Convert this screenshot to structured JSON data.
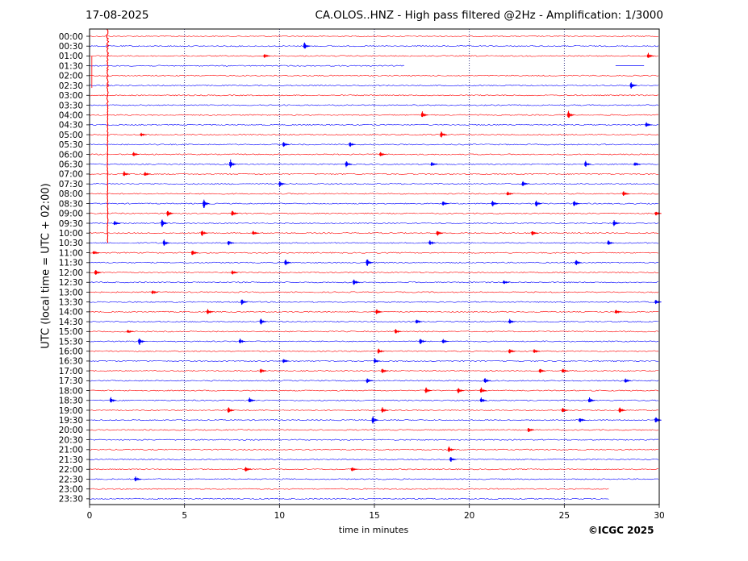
{
  "header": {
    "date": "17-08-2025",
    "title": "CA.OLOS..HNZ - High pass filtered @2Hz - Amplification: 1/3000"
  },
  "footer": {
    "copyright": "©ICGC 2025"
  },
  "chart_data": {
    "type": "line",
    "title": "CA.OLOS..HNZ - High pass filtered @2Hz - Amplification: 1/3000",
    "xlabel": "time in minutes",
    "ylabel": "UTC (local time = UTC + 02:00)",
    "xlim": [
      0,
      30
    ],
    "xticks": [
      0,
      5,
      10,
      15,
      20,
      25,
      30
    ],
    "grid": "vertical dotted lines at 5-minute intervals",
    "colors": {
      "red": "#ff0000",
      "blue": "#0000ff"
    },
    "rows": [
      "00:00",
      "00:30",
      "01:00",
      "01:30",
      "02:00",
      "02:30",
      "03:00",
      "03:30",
      "04:00",
      "04:30",
      "05:00",
      "05:30",
      "06:00",
      "06:30",
      "07:00",
      "07:30",
      "08:00",
      "08:30",
      "09:00",
      "09:30",
      "10:00",
      "10:30",
      "11:00",
      "11:30",
      "12:00",
      "12:30",
      "13:00",
      "13:30",
      "14:00",
      "14:30",
      "15:00",
      "15:30",
      "16:00",
      "16:30",
      "17:00",
      "17:30",
      "18:00",
      "18:30",
      "19:00",
      "19:30",
      "20:00",
      "20:30",
      "21:00",
      "21:30",
      "22:00",
      "22:30",
      "23:00",
      "23:30"
    ],
    "row_colors": [
      "red",
      "blue",
      "red",
      "blue",
      "red",
      "blue",
      "red",
      "blue",
      "red",
      "blue",
      "red",
      "blue",
      "red",
      "blue",
      "red",
      "blue",
      "red",
      "blue",
      "red",
      "blue",
      "red",
      "blue",
      "red",
      "blue",
      "red",
      "blue",
      "red",
      "blue",
      "red",
      "blue",
      "red",
      "blue",
      "red",
      "blue",
      "red",
      "blue",
      "red",
      "blue",
      "red",
      "blue",
      "red",
      "blue",
      "red",
      "blue",
      "red",
      "blue",
      "red",
      "blue"
    ],
    "traces_end_minute": [
      30,
      30,
      30,
      16.6,
      30,
      30,
      30,
      30,
      30,
      30,
      30,
      30,
      30,
      30,
      30,
      30,
      30,
      30,
      30,
      30,
      30,
      30,
      30,
      30,
      30,
      30,
      30,
      30,
      30,
      30,
      30,
      30,
      30,
      30,
      30,
      30,
      30,
      30,
      30,
      30,
      30,
      30,
      30,
      30,
      30,
      30,
      27.4,
      27.4
    ],
    "gaps": [
      {
        "row": "01:30",
        "from_minute": 16.6,
        "to_minute": 27.7
      }
    ],
    "large_event": {
      "minute": 0.95,
      "start_row": "00:00",
      "end_row": "10:30"
    },
    "events": [
      {
        "row": "00:30",
        "minute": 11.4,
        "amp": 0.55
      },
      {
        "row": "01:00",
        "minute": 29.5,
        "amp": 0.4
      },
      {
        "row": "01:00",
        "minute": 9.3,
        "amp": 0.3
      },
      {
        "row": "02:30",
        "minute": 28.6,
        "amp": 0.5
      },
      {
        "row": "04:00",
        "minute": 17.6,
        "amp": 0.45
      },
      {
        "row": "04:00",
        "minute": 25.3,
        "amp": 0.55
      },
      {
        "row": "04:30",
        "minute": 29.4,
        "amp": 0.35
      },
      {
        "row": "05:00",
        "minute": 18.6,
        "amp": 0.45
      },
      {
        "row": "05:00",
        "minute": 2.8,
        "amp": 0.25
      },
      {
        "row": "05:30",
        "minute": 10.3,
        "amp": 0.45
      },
      {
        "row": "05:30",
        "minute": 13.8,
        "amp": 0.35
      },
      {
        "row": "06:00",
        "minute": 2.4,
        "amp": 0.3
      },
      {
        "row": "06:00",
        "minute": 15.4,
        "amp": 0.3
      },
      {
        "row": "06:30",
        "minute": 7.5,
        "amp": 0.6
      },
      {
        "row": "06:30",
        "minute": 13.6,
        "amp": 0.45
      },
      {
        "row": "06:30",
        "minute": 18.1,
        "amp": 0.3
      },
      {
        "row": "06:30",
        "minute": 26.2,
        "amp": 0.45
      },
      {
        "row": "06:30",
        "minute": 28.8,
        "amp": 0.3
      },
      {
        "row": "07:00",
        "minute": 1.9,
        "amp": 0.35
      },
      {
        "row": "07:00",
        "minute": 3.0,
        "amp": 0.3
      },
      {
        "row": "07:30",
        "minute": 10.1,
        "amp": 0.4
      },
      {
        "row": "07:30",
        "minute": 22.9,
        "amp": 0.35
      },
      {
        "row": "08:00",
        "minute": 22.1,
        "amp": 0.35
      },
      {
        "row": "08:00",
        "minute": 28.2,
        "amp": 0.35
      },
      {
        "row": "08:30",
        "minute": 6.1,
        "amp": 0.65
      },
      {
        "row": "08:30",
        "minute": 21.3,
        "amp": 0.45
      },
      {
        "row": "08:30",
        "minute": 23.6,
        "amp": 0.45
      },
      {
        "row": "08:30",
        "minute": 25.6,
        "amp": 0.4
      },
      {
        "row": "08:30",
        "minute": 18.7,
        "amp": 0.35
      },
      {
        "row": "09:00",
        "minute": 4.2,
        "amp": 0.5
      },
      {
        "row": "09:00",
        "minute": 7.6,
        "amp": 0.4
      },
      {
        "row": "09:00",
        "minute": 29.9,
        "amp": 0.3
      },
      {
        "row": "09:30",
        "minute": 3.9,
        "amp": 0.55
      },
      {
        "row": "09:30",
        "minute": 27.7,
        "amp": 0.45
      },
      {
        "row": "09:30",
        "minute": 1.4,
        "amp": 0.3
      },
      {
        "row": "10:00",
        "minute": 6.0,
        "amp": 0.45
      },
      {
        "row": "10:00",
        "minute": 18.4,
        "amp": 0.4
      },
      {
        "row": "10:00",
        "minute": 23.4,
        "amp": 0.35
      },
      {
        "row": "10:00",
        "minute": 8.7,
        "amp": 0.3
      },
      {
        "row": "10:30",
        "minute": 4.0,
        "amp": 0.45
      },
      {
        "row": "10:30",
        "minute": 7.4,
        "amp": 0.35
      },
      {
        "row": "10:30",
        "minute": 18.0,
        "amp": 0.35
      },
      {
        "row": "10:30",
        "minute": 27.4,
        "amp": 0.35
      },
      {
        "row": "11:00",
        "minute": 5.5,
        "amp": 0.4
      },
      {
        "row": "11:00",
        "minute": 0.3,
        "amp": 0.3
      },
      {
        "row": "11:30",
        "minute": 14.7,
        "amp": 0.55
      },
      {
        "row": "11:30",
        "minute": 10.4,
        "amp": 0.4
      },
      {
        "row": "11:30",
        "minute": 25.7,
        "amp": 0.4
      },
      {
        "row": "12:00",
        "minute": 0.4,
        "amp": 0.4
      },
      {
        "row": "12:00",
        "minute": 7.6,
        "amp": 0.3
      },
      {
        "row": "12:30",
        "minute": 14.0,
        "amp": 0.4
      },
      {
        "row": "12:30",
        "minute": 21.9,
        "amp": 0.3
      },
      {
        "row": "13:00",
        "minute": 3.4,
        "amp": 0.3
      },
      {
        "row": "13:30",
        "minute": 8.1,
        "amp": 0.45
      },
      {
        "row": "13:30",
        "minute": 29.9,
        "amp": 0.3
      },
      {
        "row": "14:00",
        "minute": 6.3,
        "amp": 0.35
      },
      {
        "row": "14:00",
        "minute": 15.2,
        "amp": 0.35
      },
      {
        "row": "14:00",
        "minute": 27.8,
        "amp": 0.35
      },
      {
        "row": "14:30",
        "minute": 9.1,
        "amp": 0.45
      },
      {
        "row": "14:30",
        "minute": 17.3,
        "amp": 0.35
      },
      {
        "row": "14:30",
        "minute": 22.2,
        "amp": 0.35
      },
      {
        "row": "15:00",
        "minute": 16.2,
        "amp": 0.35
      },
      {
        "row": "15:00",
        "minute": 2.1,
        "amp": 0.25
      },
      {
        "row": "15:30",
        "minute": 2.7,
        "amp": 0.55
      },
      {
        "row": "15:30",
        "minute": 17.5,
        "amp": 0.45
      },
      {
        "row": "15:30",
        "minute": 8.0,
        "amp": 0.35
      },
      {
        "row": "15:30",
        "minute": 18.7,
        "amp": 0.35
      },
      {
        "row": "16:00",
        "minute": 15.3,
        "amp": 0.4
      },
      {
        "row": "16:00",
        "minute": 22.2,
        "amp": 0.35
      },
      {
        "row": "16:00",
        "minute": 23.5,
        "amp": 0.3
      },
      {
        "row": "16:30",
        "minute": 10.3,
        "amp": 0.35
      },
      {
        "row": "16:30",
        "minute": 15.1,
        "amp": 0.35
      },
      {
        "row": "17:00",
        "minute": 9.1,
        "amp": 0.35
      },
      {
        "row": "17:00",
        "minute": 15.5,
        "amp": 0.35
      },
      {
        "row": "17:00",
        "minute": 23.8,
        "amp": 0.35
      },
      {
        "row": "17:00",
        "minute": 25.0,
        "amp": 0.35
      },
      {
        "row": "17:30",
        "minute": 14.7,
        "amp": 0.35
      },
      {
        "row": "17:30",
        "minute": 20.9,
        "amp": 0.35
      },
      {
        "row": "17:30",
        "minute": 28.3,
        "amp": 0.35
      },
      {
        "row": "18:00",
        "minute": 17.8,
        "amp": 0.4
      },
      {
        "row": "18:00",
        "minute": 19.5,
        "amp": 0.4
      },
      {
        "row": "18:00",
        "minute": 20.7,
        "amp": 0.4
      },
      {
        "row": "18:30",
        "minute": 1.2,
        "amp": 0.4
      },
      {
        "row": "18:30",
        "minute": 8.5,
        "amp": 0.4
      },
      {
        "row": "18:30",
        "minute": 20.7,
        "amp": 0.4
      },
      {
        "row": "18:30",
        "minute": 26.4,
        "amp": 0.4
      },
      {
        "row": "19:00",
        "minute": 7.4,
        "amp": 0.45
      },
      {
        "row": "19:00",
        "minute": 15.5,
        "amp": 0.4
      },
      {
        "row": "19:00",
        "minute": 28.0,
        "amp": 0.5
      },
      {
        "row": "19:00",
        "minute": 25.0,
        "amp": 0.4
      },
      {
        "row": "19:30",
        "minute": 15.0,
        "amp": 0.55
      },
      {
        "row": "19:30",
        "minute": 29.9,
        "amp": 0.5
      },
      {
        "row": "19:30",
        "minute": 25.9,
        "amp": 0.35
      },
      {
        "row": "20:00",
        "minute": 23.2,
        "amp": 0.35
      },
      {
        "row": "21:00",
        "minute": 19.0,
        "amp": 0.4
      },
      {
        "row": "21:30",
        "minute": 19.1,
        "amp": 0.4
      },
      {
        "row": "22:00",
        "minute": 8.3,
        "amp": 0.35
      },
      {
        "row": "22:00",
        "minute": 13.9,
        "amp": 0.3
      },
      {
        "row": "22:30",
        "minute": 2.5,
        "amp": 0.35
      }
    ]
  }
}
